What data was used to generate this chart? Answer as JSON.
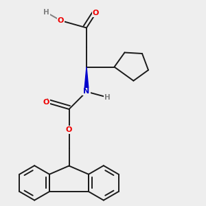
{
  "background_color": "#eeeeee",
  "bond_color": "#1a1a1a",
  "oxygen_color": "#ee0000",
  "nitrogen_color": "#0000cc",
  "hydrogen_color": "#808080",
  "bond_width": 1.4,
  "figsize": [
    3.0,
    3.0
  ],
  "dpi": 100,
  "xlim": [
    0.05,
    0.95
  ],
  "ylim": [
    0.02,
    1.02
  ]
}
